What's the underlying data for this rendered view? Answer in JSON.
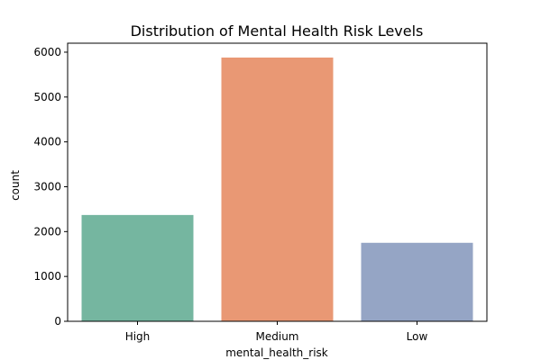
{
  "chart_data": {
    "type": "bar",
    "title": "Distribution of Mental Health Risk Levels",
    "xlabel": "mental_health_risk",
    "ylabel": "count",
    "categories": [
      "High",
      "Medium",
      "Low"
    ],
    "values": [
      2370,
      5880,
      1750
    ],
    "ylim": [
      0,
      6200
    ],
    "yticks": [
      0,
      1000,
      2000,
      3000,
      4000,
      5000,
      6000
    ],
    "colors": [
      "#75b6a0",
      "#e99874",
      "#95a5c5"
    ],
    "grid": false,
    "legend": false
  }
}
